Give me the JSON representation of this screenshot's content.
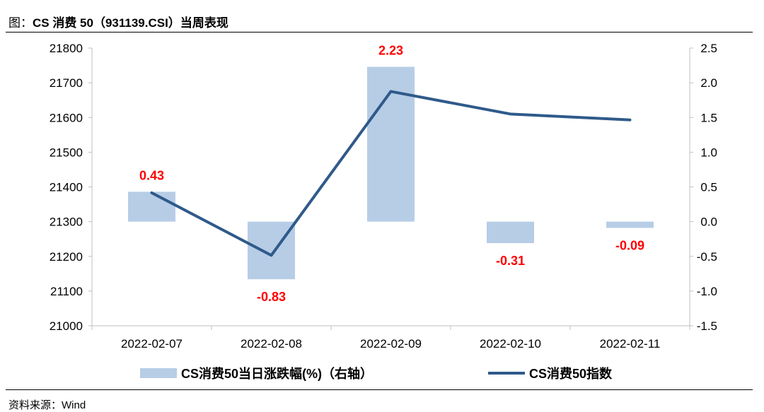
{
  "title": {
    "prefix": "图：",
    "main": "CS 消费 50（931139.CSI）当周表现"
  },
  "source": "资料来源：Wind",
  "colors": {
    "bar": "#b7cde6",
    "line": "#2f5a8a",
    "label": "#ff0000",
    "axis": "#bfbfbf"
  },
  "chart_data": {
    "type": "bar",
    "categories": [
      "2022-02-07",
      "2022-02-08",
      "2022-02-09",
      "2022-02-10",
      "2022-02-11"
    ],
    "series": [
      {
        "name": "CS消费50当日涨跌幅(%)（右轴）",
        "type": "bar",
        "axis": "right",
        "values": [
          0.43,
          -0.83,
          2.23,
          -0.31,
          -0.09
        ],
        "value_labels": [
          "0.43",
          "-0.83",
          "2.23",
          "-0.31",
          "-0.09"
        ]
      },
      {
        "name": "CS消费50指数",
        "type": "line",
        "axis": "left",
        "values": [
          21383,
          21203,
          21675,
          21610,
          21593
        ]
      }
    ],
    "y_left": {
      "min": 21000,
      "max": 21800,
      "ticks": [
        "21800",
        "21700",
        "21600",
        "21500",
        "21400",
        "21300",
        "21200",
        "21100",
        "21000"
      ]
    },
    "y_right": {
      "min": -1.5,
      "max": 2.5,
      "ticks": [
        "2.5",
        "2.0",
        "1.5",
        "1.0",
        "0.5",
        "0.0",
        "-0.5",
        "-1.0",
        "-1.5"
      ]
    },
    "legend_position": "bottom"
  }
}
